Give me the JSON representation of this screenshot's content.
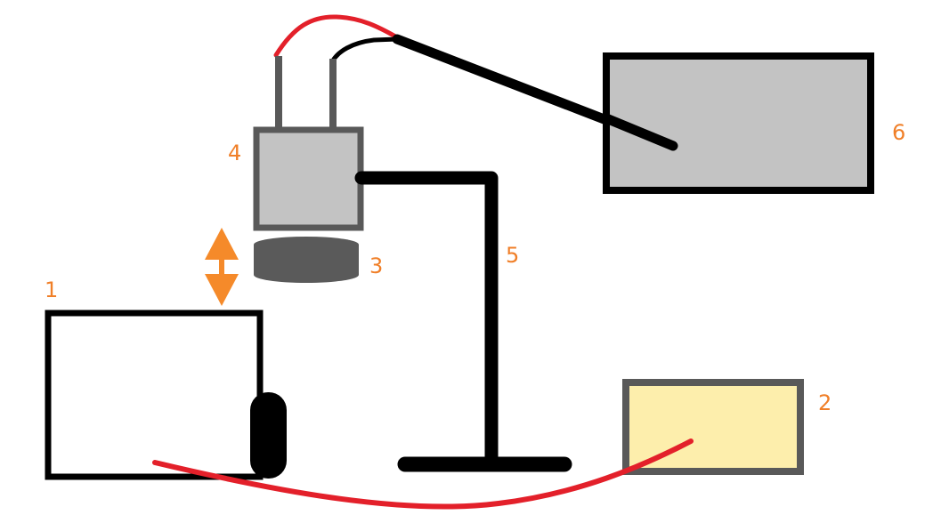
{
  "diagram": {
    "labels": {
      "l1": "1",
      "l2": "2",
      "l3": "3",
      "l4": "4",
      "l5": "5",
      "l6": "6"
    },
    "colors": {
      "outline": "#000000",
      "label": "#f07f28",
      "arrow": "#f58a2a",
      "camera_body": "#c3c3c3",
      "camera_border": "#595959",
      "lens": "#5a5a5a",
      "device_2_fill": "#fdeeac",
      "device_2_border": "#595959",
      "device_6_fill": "#c3c3c3",
      "cable_red": "#e3202a",
      "cable_black": "#000000",
      "connector": "#595959"
    }
  }
}
